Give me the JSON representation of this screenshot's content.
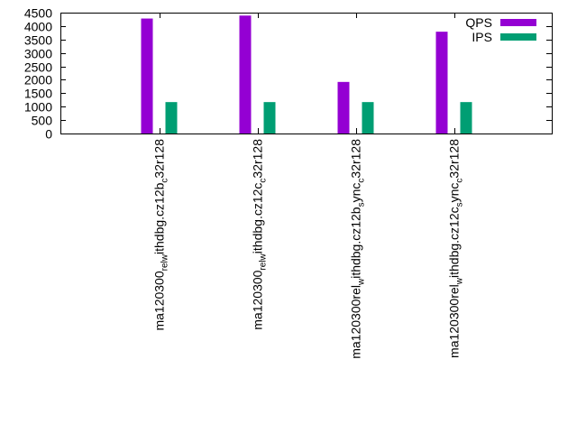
{
  "chart_data": {
    "type": "bar",
    "title": "",
    "xlabel": "",
    "ylabel": "",
    "ylim": [
      0,
      4500
    ],
    "yticks": [
      0,
      500,
      1000,
      1500,
      2000,
      2500,
      3000,
      3500,
      4000,
      4500
    ],
    "grid": false,
    "legend_position": "top-right",
    "categories": [
      {
        "main": "ma120300",
        "s1": "rel",
        "m1": "",
        "s2": "w",
        "m2": "ithdbg.cz12b",
        "s3": "c",
        "m3": "32r128"
      },
      {
        "main": "ma120300",
        "s1": "rel",
        "m1": "",
        "s2": "w",
        "m2": "ithdbg.cz12c",
        "s3": "c",
        "m3": "32r128"
      },
      {
        "main": "ma120300",
        "s1": "",
        "m1": "rel",
        "s2": "w",
        "m2": "ithdbg.cz12b",
        "s3": "s",
        "m3": "ync",
        "s4": "c",
        "m4": "32r128"
      },
      {
        "main": "ma120300",
        "s1": "",
        "m1": "rel",
        "s2": "w",
        "m2": "ithdbg.cz12c",
        "s3": "s",
        "m3": "ync",
        "s4": "c",
        "m4": "32r128"
      }
    ],
    "series": [
      {
        "name": "QPS",
        "color": "#9400d3",
        "values": [
          4280,
          4390,
          1920,
          3790
        ]
      },
      {
        "name": "IPS",
        "color": "#009e73",
        "values": [
          1170,
          1170,
          1170,
          1170
        ]
      }
    ]
  }
}
